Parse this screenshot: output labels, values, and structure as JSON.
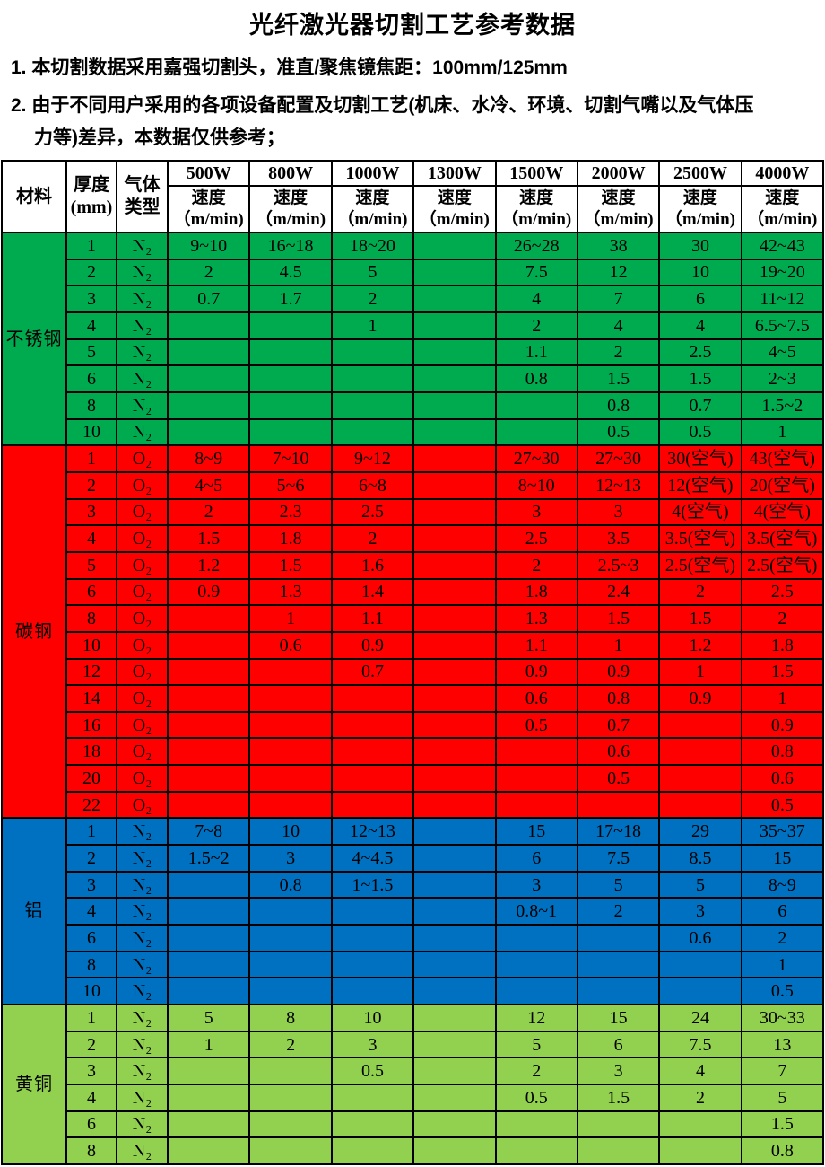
{
  "title": "光纤激光器切割工艺参考数据",
  "notes": [
    "1. 本切割数据采用嘉强切割头，准直/聚焦镜焦距：100mm/125mm",
    "2. 由于不同用户采用的各项设备配置及切割工艺(机床、水冷、环境、切割气嘴以及气体压\n力等)差异，本数据仅供参考；"
  ],
  "table": {
    "header": {
      "material": "材料",
      "thickness": "厚度\n(mm)",
      "gas": "气体\n类型",
      "powers": [
        "500W",
        "800W",
        "1000W",
        "1300W",
        "1500W",
        "2000W",
        "2500W",
        "4000W"
      ],
      "speed_label": "速度\n（m/min)"
    },
    "sections": [
      {
        "material": "不锈钢",
        "color": "#00AB50",
        "rows": [
          {
            "thickness": "1",
            "gas": "N₂",
            "speeds": [
              "9~10",
              "16~18",
              "18~20",
              "",
              "26~28",
              "38",
              "30",
              "42~43"
            ]
          },
          {
            "thickness": "2",
            "gas": "N₂",
            "speeds": [
              "2",
              "4.5",
              "5",
              "",
              "7.5",
              "12",
              "10",
              "19~20"
            ]
          },
          {
            "thickness": "3",
            "gas": "N₂",
            "speeds": [
              "0.7",
              "1.7",
              "2",
              "",
              "4",
              "7",
              "6",
              "11~12"
            ]
          },
          {
            "thickness": "4",
            "gas": "N₂",
            "speeds": [
              "",
              "",
              "1",
              "",
              "2",
              "4",
              "4",
              "6.5~7.5"
            ]
          },
          {
            "thickness": "5",
            "gas": "N₂",
            "speeds": [
              "",
              "",
              "",
              "",
              "1.1",
              "2",
              "2.5",
              "4~5"
            ]
          },
          {
            "thickness": "6",
            "gas": "N₂",
            "speeds": [
              "",
              "",
              "",
              "",
              "0.8",
              "1.5",
              "1.5",
              "2~3"
            ]
          },
          {
            "thickness": "8",
            "gas": "N₂",
            "speeds": [
              "",
              "",
              "",
              "",
              "",
              "0.8",
              "0.7",
              "1.5~2"
            ]
          },
          {
            "thickness": "10",
            "gas": "N₂",
            "speeds": [
              "",
              "",
              "",
              "",
              "",
              "0.5",
              "0.5",
              "1"
            ]
          }
        ]
      },
      {
        "material": "碳钢",
        "color": "#FF0000",
        "rows": [
          {
            "thickness": "1",
            "gas": "O₂",
            "speeds": [
              "8~9",
              "7~10",
              "9~12",
              "",
              "27~30",
              "27~30",
              "30(空气)",
              "43(空气)"
            ]
          },
          {
            "thickness": "2",
            "gas": "O₂",
            "speeds": [
              "4~5",
              "5~6",
              "6~8",
              "",
              "8~10",
              "12~13",
              "12(空气)",
              "20(空气)"
            ]
          },
          {
            "thickness": "3",
            "gas": "O₂",
            "speeds": [
              "2",
              "2.3",
              "2.5",
              "",
              "3",
              "3",
              "4(空气)",
              "4(空气)"
            ]
          },
          {
            "thickness": "4",
            "gas": "O₂",
            "speeds": [
              "1.5",
              "1.8",
              "2",
              "",
              "2.5",
              "3.5",
              "3.5(空气)",
              "3.5(空气)"
            ]
          },
          {
            "thickness": "5",
            "gas": "O₂",
            "speeds": [
              "1.2",
              "1.5",
              "1.6",
              "",
              "2",
              "2.5~3",
              "2.5(空气)",
              "2.5(空气)"
            ]
          },
          {
            "thickness": "6",
            "gas": "O₂",
            "speeds": [
              "0.9",
              "1.3",
              "1.4",
              "",
              "1.8",
              "2.4",
              "2",
              "2.5"
            ]
          },
          {
            "thickness": "8",
            "gas": "O₂",
            "speeds": [
              "",
              "1",
              "1.1",
              "",
              "1.3",
              "1.5",
              "1.5",
              "2"
            ]
          },
          {
            "thickness": "10",
            "gas": "O₂",
            "speeds": [
              "",
              "0.6",
              "0.9",
              "",
              "1.1",
              "1",
              "1.2",
              "1.8"
            ]
          },
          {
            "thickness": "12",
            "gas": "O₂",
            "speeds": [
              "",
              "",
              "0.7",
              "",
              "0.9",
              "0.9",
              "1",
              "1.5"
            ]
          },
          {
            "thickness": "14",
            "gas": "O₂",
            "speeds": [
              "",
              "",
              "",
              "",
              "0.6",
              "0.8",
              "0.9",
              "1"
            ]
          },
          {
            "thickness": "16",
            "gas": "O₂",
            "speeds": [
              "",
              "",
              "",
              "",
              "0.5",
              "0.7",
              "",
              "0.9"
            ]
          },
          {
            "thickness": "18",
            "gas": "O₂",
            "speeds": [
              "",
              "",
              "",
              "",
              "",
              "0.6",
              "",
              "0.8"
            ]
          },
          {
            "thickness": "20",
            "gas": "O₂",
            "speeds": [
              "",
              "",
              "",
              "",
              "",
              "0.5",
              "",
              "0.6"
            ]
          },
          {
            "thickness": "22",
            "gas": "O₂",
            "speeds": [
              "",
              "",
              "",
              "",
              "",
              "",
              "",
              "0.5"
            ]
          }
        ]
      },
      {
        "material": "铝",
        "color": "#0070C0",
        "rows": [
          {
            "thickness": "1",
            "gas": "N₂",
            "speeds": [
              "7~8",
              "10",
              "12~13",
              "",
              "15",
              "17~18",
              "29",
              "35~37"
            ]
          },
          {
            "thickness": "2",
            "gas": "N₂",
            "speeds": [
              "1.5~2",
              "3",
              "4~4.5",
              "",
              "6",
              "7.5",
              "8.5",
              "15"
            ]
          },
          {
            "thickness": "3",
            "gas": "N₂",
            "speeds": [
              "",
              "0.8",
              "1~1.5",
              "",
              "3",
              "5",
              "5",
              "8~9"
            ]
          },
          {
            "thickness": "4",
            "gas": "N₂",
            "speeds": [
              "",
              "",
              "",
              "",
              "0.8~1",
              "2",
              "3",
              "6"
            ]
          },
          {
            "thickness": "6",
            "gas": "N₂",
            "speeds": [
              "",
              "",
              "",
              "",
              "",
              "",
              "0.6",
              "2"
            ]
          },
          {
            "thickness": "8",
            "gas": "N₂",
            "speeds": [
              "",
              "",
              "",
              "",
              "",
              "",
              "",
              "1"
            ]
          },
          {
            "thickness": "10",
            "gas": "N₂",
            "speeds": [
              "",
              "",
              "",
              "",
              "",
              "",
              "",
              "0.5"
            ]
          }
        ]
      },
      {
        "material": "黄铜",
        "color": "#92D050",
        "rows": [
          {
            "thickness": "1",
            "gas": "N₂",
            "speeds": [
              "5",
              "8",
              "10",
              "",
              "12",
              "15",
              "24",
              "30~33"
            ]
          },
          {
            "thickness": "2",
            "gas": "N₂",
            "speeds": [
              "1",
              "2",
              "3",
              "",
              "5",
              "6",
              "7.5",
              "13"
            ]
          },
          {
            "thickness": "3",
            "gas": "N₂",
            "speeds": [
              "",
              "",
              "0.5",
              "",
              "2",
              "3",
              "4",
              "7"
            ]
          },
          {
            "thickness": "4",
            "gas": "N₂",
            "speeds": [
              "",
              "",
              "",
              "",
              "0.5",
              "1.5",
              "2",
              "5"
            ]
          },
          {
            "thickness": "6",
            "gas": "N₂",
            "speeds": [
              "",
              "",
              "",
              "",
              "",
              "",
              "",
              "1.5"
            ]
          },
          {
            "thickness": "8",
            "gas": "N₂",
            "speeds": [
              "",
              "",
              "",
              "",
              "",
              "",
              "",
              "0.8"
            ]
          }
        ]
      }
    ]
  }
}
